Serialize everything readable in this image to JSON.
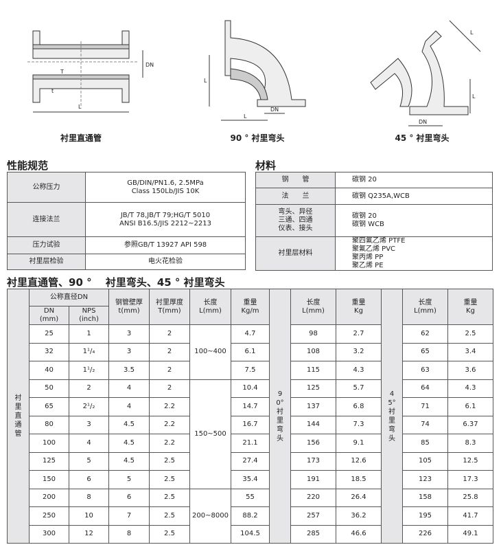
{
  "diagrams": {
    "straight": {
      "caption": "衬里直通管",
      "labels": {
        "dn": "DN",
        "l": "L",
        "big_t": "T",
        "small_t": "t"
      }
    },
    "elbow90": {
      "caption": "90 ° 衬里弯头",
      "labels": {
        "l1": "L",
        "l2": "L",
        "dn": "DN"
      }
    },
    "elbow45": {
      "caption": "45 ° 衬里弯头",
      "labels": {
        "l1": "L",
        "l2": "L",
        "dn": "DN"
      }
    }
  },
  "performance": {
    "title": "性能规范",
    "rows": [
      {
        "label": "公称压力",
        "lines": [
          "GB/DIN/PN1.6, 2.5MPa",
          "Class  150Lb/JIS 10K"
        ]
      },
      {
        "label": "连接法兰",
        "lines": [
          "JB/T 78,JB/T 79;HG/T 5010",
          "ANSI B16.5/JIS 2212~2213"
        ]
      },
      {
        "label": "压力试验",
        "lines": [
          "参照GB/T  13927  API 598"
        ]
      },
      {
        "label": "衬里层检验",
        "lines": [
          "电火花检验"
        ]
      }
    ]
  },
  "materials": {
    "title": "材料",
    "rows": [
      {
        "label": [
          "钢　　管"
        ],
        "lines": [
          "碳钢 20"
        ]
      },
      {
        "label": [
          "法　　兰"
        ],
        "lines": [
          "碳钢  Q235A,WCB"
        ]
      },
      {
        "label": [
          "弯头、异径",
          "三通、四通",
          "仪表、接头"
        ],
        "lines": [
          "碳钢  20",
          "碳钢  WCB"
        ]
      },
      {
        "label": [
          "衬里层材料"
        ],
        "lines": [
          "聚四氟乙烯 PTFE",
          "聚氟乙烯  PVC",
          "聚丙烯  PP",
          "聚乙烯  PE"
        ]
      }
    ]
  },
  "main_table": {
    "title": "衬里直通管、90 °　 衬里弯头、45 ° 衬里弯头",
    "straight_label": "衬里直通管",
    "elbow90_label": "90°衬里弯头",
    "elbow45_label": "45°衬里弯头",
    "headers": {
      "dn_group": "公称直径DN",
      "dn": [
        "DN",
        "(mm)"
      ],
      "nps": [
        "NPS",
        "(inch)"
      ],
      "wall": [
        "钢管壁厚",
        "t(mm)"
      ],
      "lining": [
        "衬里厚度",
        "T(mm)"
      ],
      "length": [
        "长度",
        "L(mm)"
      ],
      "weight_m": [
        "重量",
        "Kg/m"
      ],
      "length90": [
        "长度",
        "L(mm)"
      ],
      "weight90": [
        "重量",
        "Kg"
      ],
      "length45": [
        "长度",
        "L(mm)"
      ],
      "weight45": [
        "重量",
        "Kg"
      ]
    },
    "length_groups": [
      {
        "value": "100~400",
        "rows": 3
      },
      {
        "value": "150~500",
        "rows": 6
      },
      {
        "value": "200~8000",
        "rows": 3
      }
    ],
    "rows": [
      {
        "dn": "25",
        "nps": "1",
        "t": "3",
        "T": "2",
        "w": "4.7",
        "l90": "98",
        "w90": "2.7",
        "l45": "62",
        "w45": "2.5"
      },
      {
        "dn": "32",
        "nps": "1¹/₄",
        "t": "3",
        "T": "2",
        "w": "6.1",
        "l90": "108",
        "w90": "3.2",
        "l45": "65",
        "w45": "3.4"
      },
      {
        "dn": "40",
        "nps": "1¹/₂",
        "t": "3.5",
        "T": "2",
        "w": "7.5",
        "l90": "115",
        "w90": "4.3",
        "l45": "63",
        "w45": "3.6"
      },
      {
        "dn": "50",
        "nps": "2",
        "t": "4",
        "T": "2",
        "w": "10.4",
        "l90": "125",
        "w90": "5.7",
        "l45": "64",
        "w45": "4.3"
      },
      {
        "dn": "65",
        "nps": "2¹/₂",
        "t": "4",
        "T": "2.2",
        "w": "14.7",
        "l90": "137",
        "w90": "6.8",
        "l45": "71",
        "w45": "6.1"
      },
      {
        "dn": "80",
        "nps": "3",
        "t": "4.5",
        "T": "2.2",
        "w": "16.7",
        "l90": "144",
        "w90": "7.3",
        "l45": "74",
        "w45": "6.37"
      },
      {
        "dn": "100",
        "nps": "4",
        "t": "4.5",
        "T": "2.2",
        "w": "21.1",
        "l90": "156",
        "w90": "9.1",
        "l45": "85",
        "w45": "8.3"
      },
      {
        "dn": "125",
        "nps": "5",
        "t": "4.5",
        "T": "2.5",
        "w": "27.4",
        "l90": "173",
        "w90": "12.6",
        "l45": "105",
        "w45": "12.5"
      },
      {
        "dn": "150",
        "nps": "6",
        "t": "5",
        "T": "2.5",
        "w": "35.4",
        "l90": "191",
        "w90": "18.5",
        "l45": "123",
        "w45": "17.3"
      },
      {
        "dn": "200",
        "nps": "8",
        "t": "6",
        "T": "2.5",
        "w": "55",
        "l90": "220",
        "w90": "26.4",
        "l45": "158",
        "w45": "25.8"
      },
      {
        "dn": "250",
        "nps": "10",
        "t": "7",
        "T": "2.5",
        "w": "88.2",
        "l90": "257",
        "w90": "36.2",
        "l45": "195",
        "w45": "41.7"
      },
      {
        "dn": "300",
        "nps": "12",
        "t": "8",
        "T": "2.5",
        "w": "104.5",
        "l90": "285",
        "w90": "46.6",
        "l45": "226",
        "w45": "49.1"
      }
    ]
  },
  "colors": {
    "header_bg": "#e6e6e8",
    "border": "#555555"
  }
}
